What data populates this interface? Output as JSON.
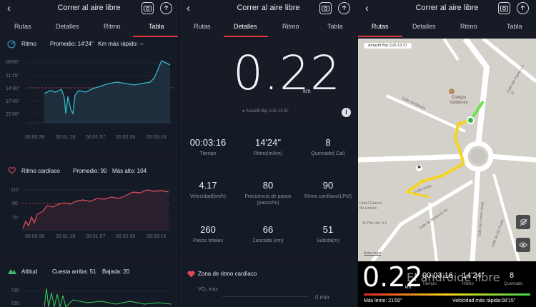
{
  "header": {
    "title": "Correr al aire libre",
    "tabs": [
      "Rutas",
      "Detalles",
      "Ritmo",
      "Tabla"
    ]
  },
  "panel1": {
    "pace": {
      "label": "Ritmo",
      "avg": "Promedio: 14'24\"",
      "fastest": "Km más rápido: --",
      "yticks": [
        "08'00\"",
        "11'15\"",
        "14'30\"",
        "17'45\"",
        "21'00\""
      ],
      "xticks": [
        "00:00:39",
        "00:01:18",
        "00:01:57",
        "00:02:36",
        "00:03:16"
      ]
    },
    "heart": {
      "label": "Ritmo cardíaco",
      "avg": "Promedio: 90",
      "max": "Más alto: 104",
      "yticks": [
        "110",
        "90",
        "70"
      ],
      "xticks": [
        "00:00:39",
        "00:01:18",
        "00:01:57",
        "00:02:36",
        "00:03:16"
      ]
    },
    "altitude": {
      "label": "Altitud",
      "up": "Cuesta arriba: 51",
      "down": "Bajada: 20",
      "yticks": [
        "735",
        "730"
      ]
    }
  },
  "panel2": {
    "distance": "0.22",
    "unit": "km",
    "device": "Amazfit Bip  11/6 13:37",
    "stats": [
      {
        "value": "00:03:16",
        "label": "Tiempo"
      },
      {
        "value": "14'24\"",
        "label": "Ritmo(m/km)"
      },
      {
        "value": "8",
        "label": "Quemado( Cal)"
      },
      {
        "value": "4.17",
        "label": "Velocidad(km/h)"
      },
      {
        "value": "80",
        "label": "Frecuencia de pasos (pasos/m)"
      },
      {
        "value": "90",
        "label": "Ritmo cardíaco(LPM)"
      },
      {
        "value": "260",
        "label": "Pasos totales"
      },
      {
        "value": "66",
        "label": "Zancada (cm)"
      },
      {
        "value": "51",
        "label": "Subida(m)"
      }
    ],
    "zone_title": "Zona de ritmo cardíaco",
    "zone_row_label": "VO₂ máx",
    "zone_row_value": "0 min"
  },
  "panel3": {
    "badge": "Amazfit Bip  11/6 13:37",
    "map_labels": {
      "colegio": "Colegio Valderrey",
      "calle1": "Calle de Baraza",
      "calle2": "Calle del Puerto y S Ju",
      "calle3": "Calle Unión",
      "calle4": "Calle del Limón Verde",
      "calle5": "Calle de las Pozas",
      "calle6": "Calle de Melancia Hu",
      "garcia": "Hotel García de Lamas",
      "pinot": "Tc Pin Hot S.L.",
      "legal": "Aviso legal"
    },
    "distance": "0.22",
    "unit": "km",
    "time": "00:03:16",
    "time_label": "Tiempo",
    "pace": "14'24\"",
    "pace_label": "Ritmo",
    "cal": "8",
    "cal_label": "Quemado",
    "slowest": "Más lento: 21'00\"",
    "fastest": "Velocidad más rápida:08'15\"",
    "watermark": "El androide libre"
  }
}
